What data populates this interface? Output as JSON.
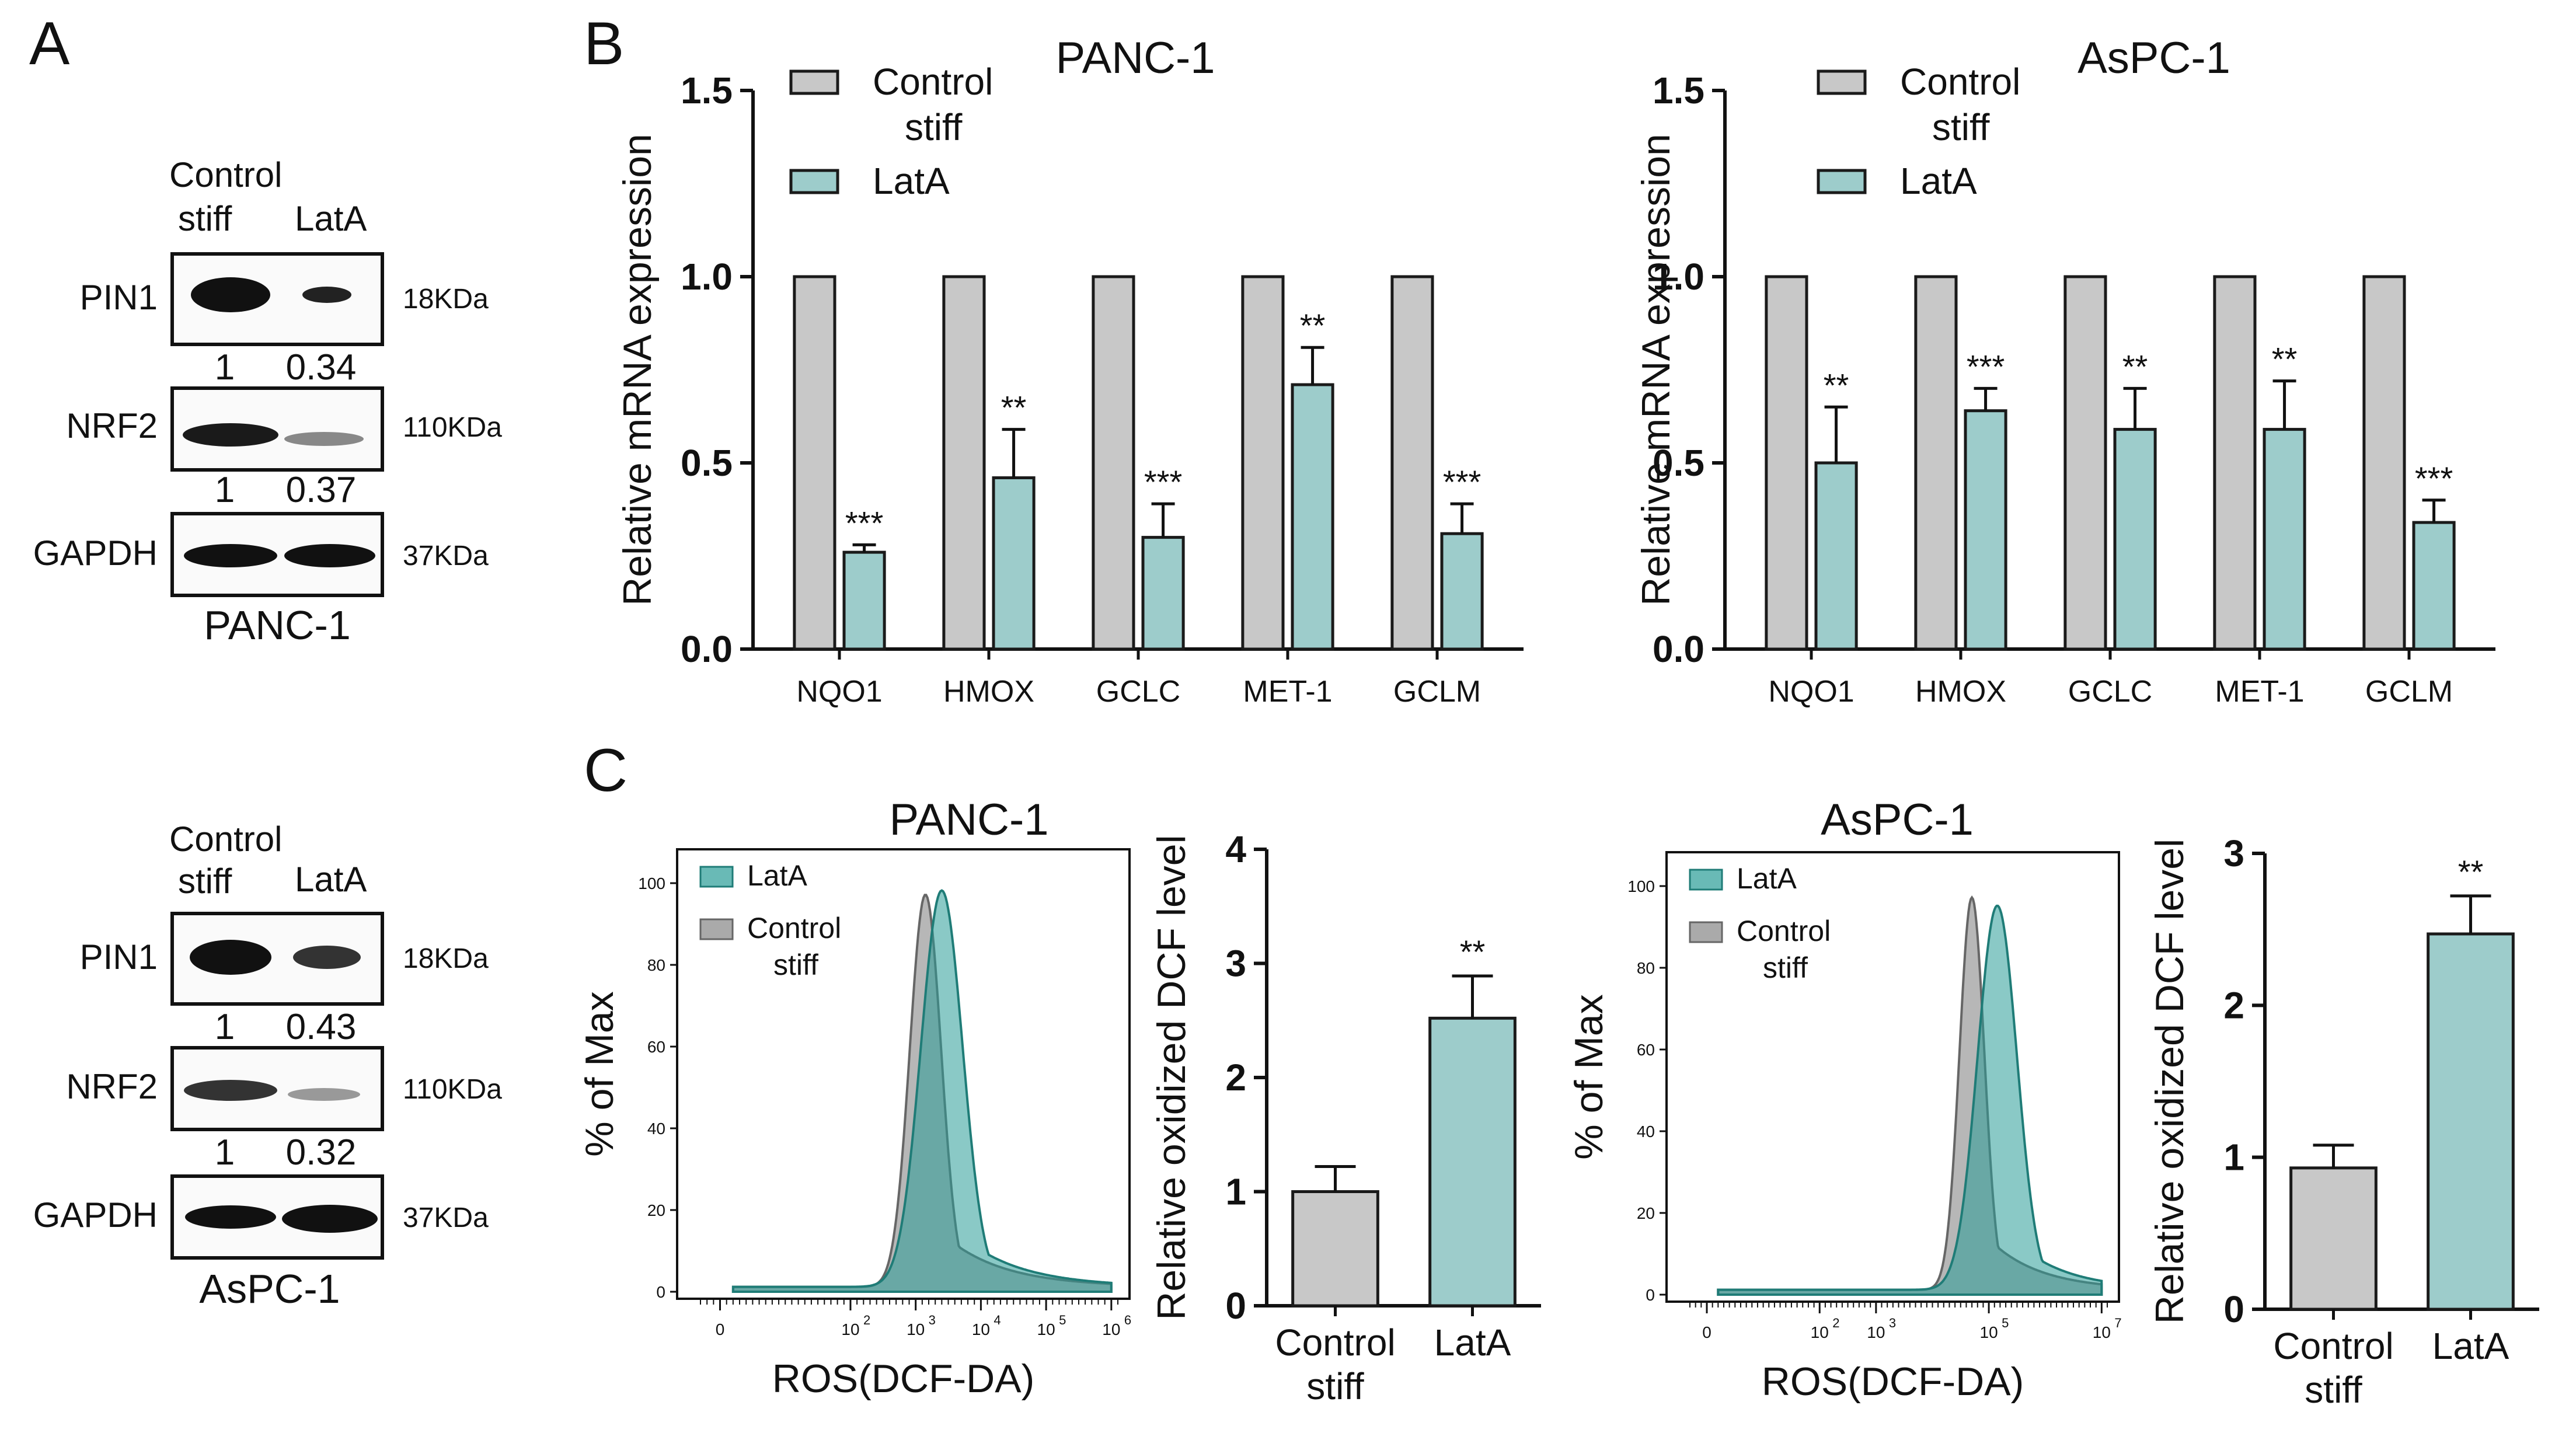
{
  "panels": {
    "A": "A",
    "B": "B",
    "C": "C"
  },
  "colors": {
    "control": "#c8c8c8",
    "lata": "#9dcccb",
    "edge": "#1a1a1a",
    "hist_lata": "#2a9d97",
    "hist_control": "#aaaaaa"
  },
  "western": [
    {
      "cell_line": "PANC-1",
      "col_header_1_line1": "Control",
      "col_header_1_line2": "stiff",
      "col_header_2": "LatA",
      "bands": [
        {
          "name": "PIN1",
          "kda": "18KDa",
          "intensity": [
            "1",
            "0.34"
          ]
        },
        {
          "name": "NRF2",
          "kda": "110KDa",
          "intensity": [
            "1",
            "0.37"
          ]
        },
        {
          "name": "GAPDH",
          "kda": "37KDa",
          "intensity": null
        }
      ]
    },
    {
      "cell_line": "AsPC-1",
      "col_header_1_line1": "Control",
      "col_header_1_line2": "stiff",
      "col_header_2": "LatA",
      "bands": [
        {
          "name": "PIN1",
          "kda": "18KDa",
          "intensity": [
            "1",
            "0.43"
          ]
        },
        {
          "name": "NRF2",
          "kda": "110KDa",
          "intensity": [
            "1",
            "0.32"
          ]
        },
        {
          "name": "GAPDH",
          "kda": "37KDa",
          "intensity": null
        }
      ]
    }
  ],
  "chart_data": [
    {
      "id": "B-PANC1",
      "type": "bar",
      "title": "PANC-1",
      "ylabel": "Relative mRNA expression",
      "xlabel": "",
      "ylim": [
        0,
        1.5
      ],
      "yticks": [
        "0.0",
        "0.5",
        "1.0",
        "1.5"
      ],
      "categories": [
        "NQO1",
        "HMOX",
        "GCLC",
        "MET-1",
        "GCLM"
      ],
      "legend": [
        {
          "line1": "Control",
          "line2": "stiff"
        },
        {
          "line1": "LatA",
          "line2": ""
        }
      ],
      "series": [
        {
          "name": "Control stiff",
          "values": [
            1.0,
            1.0,
            1.0,
            1.0,
            1.0
          ],
          "errors": [
            0,
            0,
            0,
            0,
            0
          ]
        },
        {
          "name": "LatA",
          "values": [
            0.26,
            0.46,
            0.3,
            0.71,
            0.31
          ],
          "errors": [
            0.02,
            0.13,
            0.09,
            0.1,
            0.08
          ]
        }
      ],
      "significance": [
        "***",
        "**",
        "***",
        "**",
        "***"
      ]
    },
    {
      "id": "B-AsPC1",
      "type": "bar",
      "title": "AsPC-1",
      "ylabel": "Relative mRNA expression",
      "xlabel": "",
      "ylim": [
        0,
        1.5
      ],
      "yticks": [
        "0.0",
        "0.5",
        "1.0",
        "1.5"
      ],
      "categories": [
        "NQO1",
        "HMOX",
        "GCLC",
        "MET-1",
        "GCLM"
      ],
      "legend": [
        {
          "line1": "Control",
          "line2": "stiff"
        },
        {
          "line1": "LatA",
          "line2": ""
        }
      ],
      "series": [
        {
          "name": "Control stiff",
          "values": [
            1.0,
            1.0,
            1.0,
            1.0,
            1.0
          ],
          "errors": [
            0,
            0,
            0,
            0,
            0
          ]
        },
        {
          "name": "LatA",
          "values": [
            0.5,
            0.64,
            0.59,
            0.59,
            0.34
          ],
          "errors": [
            0.15,
            0.06,
            0.11,
            0.13,
            0.06
          ]
        }
      ],
      "significance": [
        "**",
        "***",
        "**",
        "**",
        "***"
      ]
    },
    {
      "id": "C-PANC1-hist",
      "type": "area",
      "title": "PANC-1",
      "xlabel": "ROS(DCF-DA)",
      "ylabel": "% of Max",
      "yticks": [
        "0",
        "20",
        "40",
        "60",
        "80",
        "100"
      ],
      "xticks": [
        {
          "base": "0",
          "exp": ""
        },
        {
          "base": "10",
          "exp": "2"
        },
        {
          "base": "10",
          "exp": "3"
        },
        {
          "base": "10",
          "exp": "4"
        },
        {
          "base": "10",
          "exp": "5"
        },
        {
          "base": "10",
          "exp": "6"
        }
      ],
      "legend": [
        {
          "name": "LatA",
          "line1": "LatA",
          "line2": ""
        },
        {
          "name": "Control stiff",
          "line1": "Control",
          "line2": "stiff"
        }
      ],
      "series": [
        {
          "name": "Control stiff",
          "log10_center": 3.15,
          "width": 0.24,
          "peak": 96
        },
        {
          "name": "LatA",
          "log10_center": 3.4,
          "width": 0.32,
          "peak": 97
        }
      ]
    },
    {
      "id": "C-PANC1-bar",
      "type": "bar",
      "ylabel": "Relative oxidized DCF level",
      "ylim": [
        0,
        4
      ],
      "yticks": [
        "0",
        "1",
        "2",
        "3",
        "4"
      ],
      "categories": [
        {
          "line1": "Control",
          "line2": "stiff"
        },
        {
          "line1": "LatA",
          "line2": ""
        }
      ],
      "values": [
        1.0,
        2.52
      ],
      "errors": [
        0.22,
        0.37
      ],
      "significance": [
        "",
        "**"
      ]
    },
    {
      "id": "C-AsPC1-hist",
      "type": "area",
      "title": "AsPC-1",
      "xlabel": "ROS(DCF-DA)",
      "ylabel": "% of Max",
      "yticks": [
        "0",
        "20",
        "40",
        "60",
        "80",
        "100"
      ],
      "xticks": [
        {
          "base": "0",
          "exp": ""
        },
        {
          "base": "10",
          "exp": "2"
        },
        {
          "base": "10",
          "exp": "3"
        },
        {
          "base": "10",
          "exp": "5"
        },
        {
          "base": "10",
          "exp": "7"
        }
      ],
      "legend": [
        {
          "name": "LatA",
          "line1": "LatA",
          "line2": ""
        },
        {
          "name": "Control stiff",
          "line1": "Control",
          "line2": "stiff"
        }
      ],
      "series": [
        {
          "name": "Control stiff",
          "log10_center": 4.7,
          "width": 0.22,
          "peak": 96
        },
        {
          "name": "LatA",
          "log10_center": 5.15,
          "width": 0.35,
          "peak": 94
        }
      ]
    },
    {
      "id": "C-AsPC1-bar",
      "type": "bar",
      "ylabel": "Relative oxidized DCF level",
      "ylim": [
        0,
        3
      ],
      "yticks": [
        "0",
        "1",
        "2",
        "3"
      ],
      "categories": [
        {
          "line1": "Control",
          "line2": "stiff"
        },
        {
          "line1": "LatA",
          "line2": ""
        }
      ],
      "values": [
        0.93,
        2.47
      ],
      "errors": [
        0.15,
        0.25
      ],
      "significance": [
        "",
        "**"
      ]
    }
  ]
}
